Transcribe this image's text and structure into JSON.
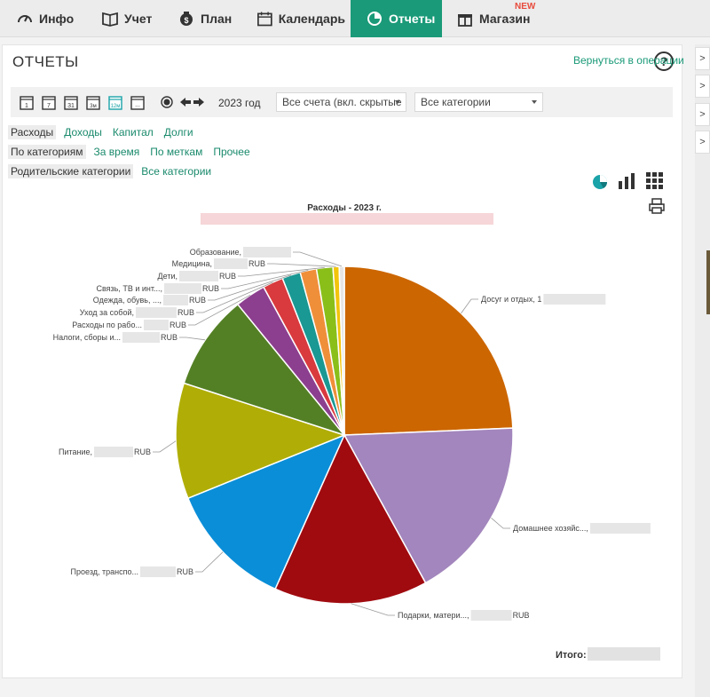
{
  "nav": {
    "items": [
      {
        "label": "Инфо",
        "icon": "speedometer-icon"
      },
      {
        "label": "Учет",
        "icon": "book-icon"
      },
      {
        "label": "План",
        "icon": "money-bag-icon"
      },
      {
        "label": "Календарь",
        "icon": "calendar-icon"
      },
      {
        "label": "Отчеты",
        "icon": "pie-chart-icon",
        "active": true
      },
      {
        "label": "Магазин",
        "icon": "gift-icon",
        "badge": "NEW"
      }
    ]
  },
  "page": {
    "title": "ОТЧЕТЫ",
    "help": "?"
  },
  "toolbar": {
    "period_icons": [
      "1",
      "7",
      "31",
      "3м",
      "12м",
      "..."
    ],
    "year": "2023 год",
    "accounts": "Все счета (вкл. скрытые",
    "categories": "Все категории",
    "back_link": "Вернуться в операции"
  },
  "filters": {
    "type": [
      "Расходы",
      "Доходы",
      "Капитал",
      "Долги"
    ],
    "group": [
      "По категориям",
      "За время",
      "По меткам",
      "Прочее"
    ],
    "level": [
      "Родительские категории",
      "Все категории"
    ]
  },
  "chart_data": {
    "type": "pie",
    "title": "Расходы - 2023 г.",
    "slices": [
      {
        "label": "Досуг и отдых, 1",
        "value": 24.8,
        "color": "#cc6600"
      },
      {
        "label": "Домашнее хозяйс...,",
        "value": 18.0,
        "color": "#a386bd"
      },
      {
        "label": "Подарки, матери...,",
        "suffix": "RUB",
        "value": 15.0,
        "color": "#a00b10"
      },
      {
        "label": "Проезд, транспо...",
        "suffix": "RUB",
        "value": 12.4,
        "color": "#0b8ed8"
      },
      {
        "label": "Питание,",
        "suffix": "RUB",
        "value": 11.3,
        "color": "#b0ae06"
      },
      {
        "label": "Налоги, сборы и...",
        "suffix": "RUB",
        "value": 9.3,
        "color": "#548025"
      },
      {
        "label": "Расходы по рабо...",
        "suffix": "RUB",
        "value": 3.0,
        "color": "#8d3f8f"
      },
      {
        "label": "Уход за собой,",
        "suffix": "RUB",
        "value": 2.0,
        "color": "#d93a3e"
      },
      {
        "label": "Одежда, обувь, ...,",
        "suffix": "RUB",
        "value": 1.8,
        "color": "#1a9893"
      },
      {
        "label": "Связь, ТВ и инт...,",
        "suffix": "RUB",
        "value": 1.6,
        "color": "#f08f3a"
      },
      {
        "label": "Дети,",
        "suffix": "RUB",
        "value": 1.6,
        "color": "#8abf1a"
      },
      {
        "label": "Медицина,",
        "suffix": "RUB",
        "value": 0.6,
        "color": "#f2c40b"
      },
      {
        "label": "Образование,",
        "suffix": "",
        "value": 0.5,
        "color": "#e6e6e6"
      }
    ]
  },
  "total": {
    "label": "Итого:"
  },
  "sidebar_right": {
    "buttons": [
      ">",
      ">",
      ">",
      ">"
    ]
  }
}
